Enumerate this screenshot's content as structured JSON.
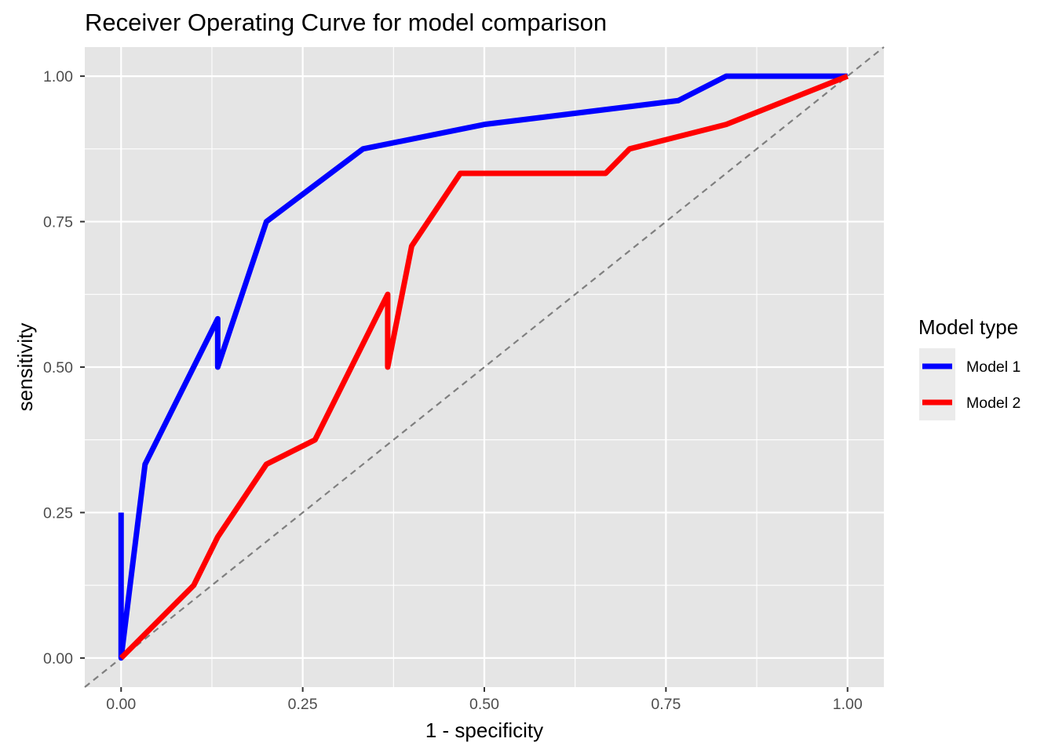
{
  "chart_data": {
    "type": "line",
    "title": "Receiver Operating Curve for model comparison",
    "xlabel": "1 - specificity",
    "ylabel": "sensitivity",
    "xlim": [
      -0.05,
      1.05
    ],
    "ylim": [
      -0.05,
      1.05
    ],
    "x_ticks": [
      0,
      0.25,
      0.5,
      0.75,
      1
    ],
    "y_ticks": [
      0,
      0.25,
      0.5,
      0.75,
      1
    ],
    "x_tick_labels": [
      "0.00",
      "0.25",
      "0.50",
      "0.75",
      "1.00"
    ],
    "y_tick_labels": [
      "0.00",
      "0.25",
      "0.50",
      "0.75",
      "1.00"
    ],
    "grid": true,
    "background_color": "#e5e5e5",
    "reference_line": {
      "slope": 1,
      "intercept": 0,
      "style": "dashed",
      "color": "#7f7f7f"
    },
    "legend": {
      "title": "Model type",
      "placement": "right"
    },
    "series": [
      {
        "name": "Model 1",
        "color": "#0000ff",
        "x": [
          0,
          0,
          0,
          0.033,
          0.133,
          0.133,
          0.2,
          0.333,
          0.5,
          0.767,
          0.833,
          1
        ],
        "y": [
          0.25,
          0,
          0,
          0.333,
          0.583,
          0.5,
          0.75,
          0.875,
          0.917,
          0.958,
          1,
          1
        ]
      },
      {
        "name": "Model 2",
        "color": "#ff0000",
        "x": [
          0,
          0.1,
          0.133,
          0.2,
          0.267,
          0.367,
          0.367,
          0.4,
          0.467,
          0.667,
          0.7,
          0.833,
          1
        ],
        "y": [
          0,
          0.125,
          0.208,
          0.333,
          0.375,
          0.625,
          0.5,
          0.708,
          0.833,
          0.833,
          0.875,
          0.917,
          1
        ]
      }
    ]
  }
}
